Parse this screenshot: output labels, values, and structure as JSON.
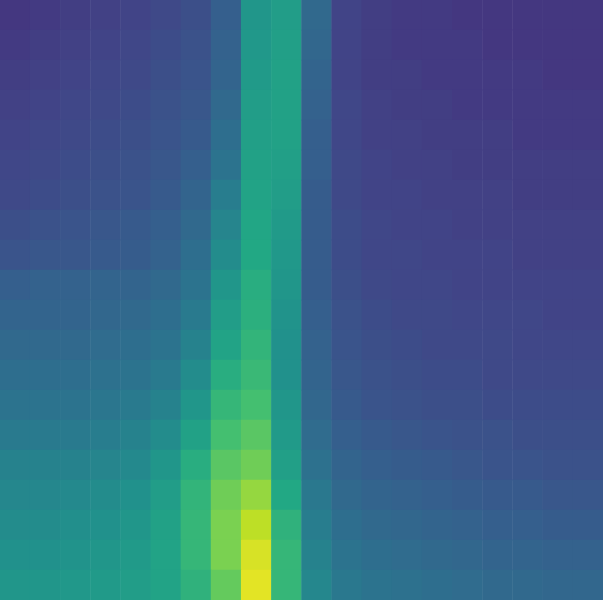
{
  "chart_data": {
    "type": "heatmap",
    "tick_labels": false,
    "grid": false,
    "zlim": [
      0,
      100
    ],
    "cells": [
      [
        16,
        17,
        18,
        19,
        20,
        22,
        24,
        30,
        52,
        55,
        34,
        20,
        18,
        17,
        17,
        16,
        16,
        16,
        16,
        16
      ],
      [
        17,
        18,
        19,
        20,
        21,
        23,
        25,
        31,
        53,
        56,
        33,
        20,
        18,
        17,
        17,
        17,
        16,
        16,
        16,
        16
      ],
      [
        18,
        19,
        20,
        21,
        22,
        24,
        26,
        32,
        54,
        57,
        32,
        20,
        18,
        18,
        17,
        17,
        17,
        17,
        16,
        16
      ],
      [
        19,
        20,
        21,
        22,
        23,
        25,
        27,
        34,
        55,
        57,
        31,
        21,
        19,
        18,
        18,
        17,
        17,
        17,
        17,
        17
      ],
      [
        20,
        21,
        22,
        23,
        24,
        26,
        28,
        36,
        56,
        57,
        30,
        21,
        19,
        19,
        18,
        18,
        18,
        17,
        17,
        17
      ],
      [
        21,
        22,
        23,
        24,
        25,
        27,
        30,
        38,
        57,
        56,
        30,
        22,
        20,
        19,
        19,
        18,
        18,
        18,
        18,
        18
      ],
      [
        22,
        23,
        24,
        25,
        26,
        28,
        32,
        42,
        58,
        55,
        29,
        22,
        20,
        20,
        19,
        19,
        19,
        18,
        18,
        18
      ],
      [
        24,
        25,
        26,
        27,
        28,
        30,
        34,
        45,
        59,
        54,
        29,
        23,
        21,
        20,
        20,
        19,
        19,
        19,
        19,
        19
      ],
      [
        26,
        27,
        27,
        28,
        29,
        31,
        36,
        48,
        60,
        53,
        29,
        23,
        21,
        21,
        20,
        20,
        20,
        19,
        19,
        19
      ],
      [
        30,
        31,
        31,
        32,
        32,
        34,
        38,
        52,
        62,
        52,
        29,
        24,
        22,
        21,
        21,
        20,
        20,
        20,
        20,
        20
      ],
      [
        32,
        32,
        32,
        33,
        34,
        36,
        41,
        55,
        63,
        51,
        30,
        25,
        23,
        22,
        22,
        21,
        21,
        21,
        20,
        20
      ],
      [
        34,
        34,
        34,
        35,
        36,
        38,
        44,
        58,
        65,
        50,
        31,
        26,
        24,
        23,
        22,
        22,
        22,
        21,
        21,
        21
      ],
      [
        36,
        36,
        36,
        37,
        38,
        41,
        48,
        62,
        67,
        50,
        32,
        27,
        25,
        24,
        23,
        23,
        22,
        22,
        22,
        22
      ],
      [
        38,
        38,
        38,
        39,
        41,
        44,
        52,
        66,
        70,
        52,
        33,
        28,
        26,
        25,
        24,
        24,
        23,
        23,
        23,
        23
      ],
      [
        41,
        41,
        41,
        42,
        44,
        48,
        57,
        70,
        74,
        54,
        35,
        30,
        28,
        27,
        26,
        25,
        25,
        24,
        24,
        24
      ],
      [
        44,
        44,
        44,
        45,
        47,
        52,
        62,
        74,
        78,
        56,
        37,
        32,
        30,
        29,
        28,
        27,
        26,
        26,
        25,
        25
      ],
      [
        46,
        46,
        47,
        48,
        50,
        55,
        65,
        78,
        84,
        60,
        40,
        34,
        32,
        31,
        30,
        29,
        28,
        28,
        27,
        27
      ],
      [
        48,
        48,
        49,
        50,
        52,
        57,
        66,
        80,
        90,
        64,
        42,
        36,
        34,
        33,
        32,
        31,
        30,
        30,
        29,
        29
      ],
      [
        50,
        50,
        51,
        52,
        54,
        58,
        66,
        80,
        94,
        66,
        44,
        38,
        36,
        35,
        34,
        33,
        32,
        32,
        31,
        31
      ],
      [
        52,
        52,
        53,
        54,
        55,
        58,
        64,
        76,
        96,
        66,
        46,
        40,
        38,
        37,
        36,
        35,
        34,
        34,
        33,
        33
      ]
    ]
  }
}
